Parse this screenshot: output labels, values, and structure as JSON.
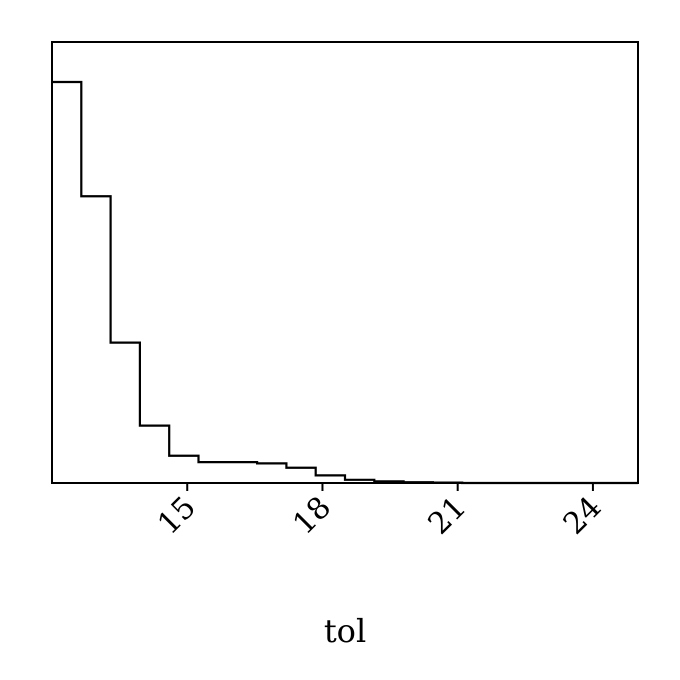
{
  "chart_data": {
    "type": "histogram",
    "title": "",
    "xlabel": "tol",
    "ylabel": "",
    "xlim": [
      12.0,
      25.0
    ],
    "x_ticks": [
      15,
      18,
      21,
      24
    ],
    "x_tick_labels": [
      "15",
      "18",
      "21",
      "24"
    ],
    "y_ticks_visible": false,
    "grid": false,
    "bin_edges": [
      12.0,
      12.65,
      13.3,
      13.95,
      14.6,
      15.25,
      15.9,
      16.55,
      17.2,
      17.85,
      18.5,
      19.15,
      19.8,
      20.45,
      21.1,
      21.75,
      22.4,
      23.05,
      23.7,
      24.35,
      25.0
    ],
    "counts": [
      1.0,
      0.715,
      0.35,
      0.143,
      0.068,
      0.052,
      0.052,
      0.049,
      0.038,
      0.019,
      0.008,
      0.004,
      0.002,
      0.001,
      0.0,
      0.0,
      0.0,
      0.0,
      0.0,
      0.0
    ],
    "line_color": "#000000"
  }
}
